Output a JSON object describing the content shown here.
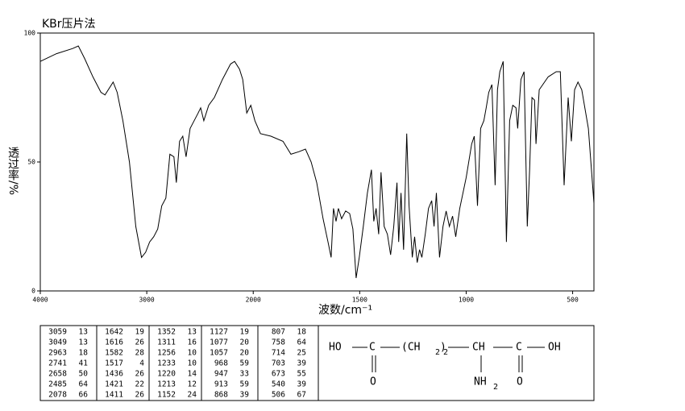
{
  "chart_data": {
    "type": "line",
    "title": "KBr压片法",
    "x_label": "波数/cm⁻¹",
    "y_label": "透过率/%",
    "xlim": [
      4000,
      400
    ],
    "xticks": [
      4000,
      3000,
      2000,
      1500,
      1000,
      500
    ],
    "x_scale_break": 2000,
    "x_scale_factor": 2,
    "ylim": [
      0,
      100
    ],
    "yticks": [
      0,
      50,
      100
    ],
    "color": "#000000",
    "x": [
      4000,
      3848,
      3696,
      3643,
      3582,
      3506,
      3430,
      3392,
      3316,
      3278,
      3224,
      3163,
      3103,
      3049,
      3011,
      2973,
      2935,
      2897,
      2859,
      2821,
      2783,
      2745,
      2722,
      2692,
      2662,
      2631,
      2593,
      2555,
      2517,
      2494,
      2464,
      2418,
      2365,
      2289,
      2213,
      2175,
      2129,
      2099,
      2061,
      2023,
      1992,
      1966,
      1917,
      1860,
      1823,
      1785,
      1755,
      1728,
      1702,
      1672,
      1649,
      1634,
      1623,
      1611,
      1600,
      1585,
      1566,
      1547,
      1532,
      1517,
      1502,
      1483,
      1464,
      1445,
      1434,
      1423,
      1411,
      1400,
      1385,
      1370,
      1355,
      1340,
      1325,
      1317,
      1306,
      1294,
      1279,
      1268,
      1253,
      1242,
      1230,
      1219,
      1208,
      1192,
      1177,
      1162,
      1151,
      1140,
      1125,
      1109,
      1094,
      1079,
      1064,
      1049,
      1030,
      1000,
      974,
      962,
      947,
      932,
      917,
      906,
      894,
      879,
      864,
      853,
      842,
      826,
      811,
      796,
      781,
      766,
      758,
      743,
      728,
      713,
      702,
      691,
      679,
      672,
      657,
      615,
      577,
      558,
      540,
      521,
      506,
      491,
      475,
      457,
      426,
      400
    ],
    "values": [
      89,
      92,
      94,
      95,
      90,
      83,
      77,
      76,
      81,
      77,
      66,
      50,
      25,
      13,
      15,
      19,
      21,
      24,
      33,
      36,
      53,
      52,
      42,
      58,
      60,
      52,
      63,
      66,
      69,
      71,
      66,
      72,
      75,
      82,
      88,
      89,
      86,
      82,
      69,
      72,
      66,
      61,
      60,
      58,
      53,
      54,
      55,
      50,
      42,
      28,
      19,
      13,
      32,
      27,
      32,
      28,
      31,
      30,
      24,
      5,
      13,
      25,
      38,
      47,
      27,
      32,
      22,
      46,
      25,
      22,
      14,
      25,
      42,
      19,
      38,
      16,
      61,
      33,
      13,
      21,
      11,
      16,
      13,
      22,
      32,
      35,
      25,
      38,
      13,
      25,
      31,
      25,
      29,
      21,
      32,
      44,
      57,
      60,
      33,
      63,
      66,
      71,
      77,
      80,
      41,
      78,
      85,
      89,
      19,
      66,
      72,
      71,
      63,
      82,
      85,
      25,
      47,
      75,
      74,
      57,
      78,
      83,
      85,
      85,
      41,
      75,
      58,
      78,
      81,
      78,
      63,
      34
    ]
  },
  "peak_table": [
    [
      [
        3059,
        13
      ],
      [
        3049,
        13
      ],
      [
        2963,
        18
      ],
      [
        2741,
        41
      ],
      [
        2658,
        50
      ],
      [
        2485,
        64
      ],
      [
        2078,
        66
      ]
    ],
    [
      [
        1642,
        19
      ],
      [
        1616,
        26
      ],
      [
        1582,
        28
      ],
      [
        1517,
        4
      ],
      [
        1436,
        26
      ],
      [
        1421,
        22
      ],
      [
        1411,
        26
      ]
    ],
    [
      [
        1352,
        13
      ],
      [
        1311,
        16
      ],
      [
        1256,
        10
      ],
      [
        1233,
        10
      ],
      [
        1220,
        14
      ],
      [
        1213,
        12
      ],
      [
        1152,
        24
      ]
    ],
    [
      [
        1127,
        19
      ],
      [
        1077,
        20
      ],
      [
        1057,
        20
      ],
      [
        968,
        59
      ],
      [
        947,
        33
      ],
      [
        913,
        59
      ],
      [
        868,
        39
      ]
    ],
    [
      [
        807,
        18
      ],
      [
        758,
        64
      ],
      [
        714,
        25
      ],
      [
        703,
        39
      ],
      [
        673,
        55
      ],
      [
        540,
        39
      ],
      [
        506,
        67
      ]
    ]
  ],
  "structure": {
    "atoms": [
      "HO",
      "C",
      "(CH",
      "2",
      ")",
      "2",
      "CH",
      "C",
      "OH",
      "O",
      "NH",
      "2",
      "O"
    ]
  }
}
